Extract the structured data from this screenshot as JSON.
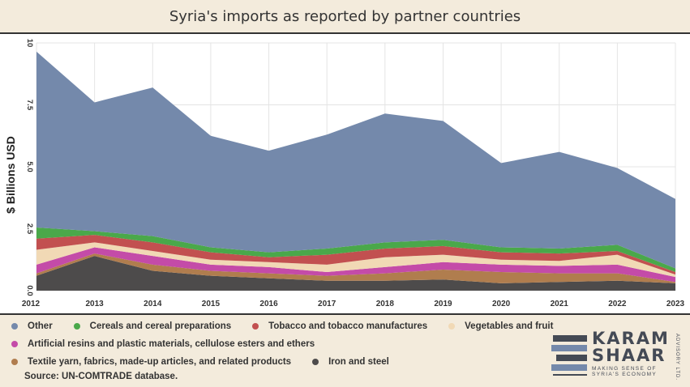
{
  "title": "Syria's imports as reported by partner countries",
  "source": "Source: UN-COMTRADE database.",
  "logo": {
    "line1": "KARAM",
    "line2": "SHAAR",
    "tagline1": "MAKING SENSE OF",
    "tagline2": "SYRIA'S ECONOMY",
    "side": "ADVISORY LTD."
  },
  "chart_data": {
    "type": "area",
    "stacked": true,
    "x": [
      "2012",
      "2013",
      "2014",
      "2015",
      "2016",
      "2017",
      "2018",
      "2019",
      "2020",
      "2021",
      "2022",
      "2023"
    ],
    "ylabel": "$ Billions USD",
    "ylim": [
      0,
      10
    ],
    "yticks": [
      "0.0",
      "2.5",
      "5.0",
      "7.5",
      "10"
    ],
    "grid": true,
    "legend_position": "bottom",
    "series": [
      {
        "name": "Iron and steel",
        "color": "#4d4b4b",
        "values": [
          0.6,
          1.4,
          0.8,
          0.6,
          0.5,
          0.4,
          0.4,
          0.45,
          0.3,
          0.35,
          0.4,
          0.3
        ]
      },
      {
        "name": "Textile yarn, fabrics, made-up articles, and related products",
        "color": "#b07d4e",
        "values": [
          0.1,
          0.1,
          0.25,
          0.2,
          0.2,
          0.2,
          0.3,
          0.4,
          0.45,
          0.35,
          0.3,
          0.05
        ]
      },
      {
        "name": "Artificial resins and plastic materials, cellulose esters and ethers",
        "color": "#c44ba8",
        "values": [
          0.35,
          0.25,
          0.35,
          0.25,
          0.25,
          0.15,
          0.25,
          0.3,
          0.3,
          0.3,
          0.35,
          0.2
        ]
      },
      {
        "name": "Vegetables and fruit",
        "color": "#f1d9b5",
        "values": [
          0.6,
          0.2,
          0.2,
          0.2,
          0.2,
          0.3,
          0.4,
          0.3,
          0.2,
          0.2,
          0.4,
          0.1
        ]
      },
      {
        "name": "Tobacco and tobacco manufactures",
        "color": "#c25050",
        "values": [
          0.45,
          0.3,
          0.35,
          0.3,
          0.2,
          0.4,
          0.35,
          0.35,
          0.3,
          0.3,
          0.15,
          0.1
        ]
      },
      {
        "name": "Cereals and cereal preparations",
        "color": "#4aa84a",
        "values": [
          0.45,
          0.15,
          0.25,
          0.2,
          0.2,
          0.25,
          0.25,
          0.25,
          0.2,
          0.2,
          0.25,
          0.15
        ]
      },
      {
        "name": "Other",
        "color": "#7489ab",
        "values": [
          7.1,
          5.2,
          6.0,
          4.5,
          4.1,
          4.6,
          5.2,
          4.8,
          3.4,
          3.9,
          3.1,
          2.8
        ]
      }
    ]
  },
  "legend_rows": [
    [
      {
        "label": "Other",
        "color": "#7489ab"
      },
      {
        "label": "Cereals and cereal preparations",
        "color": "#4aa84a"
      },
      {
        "label": "Tobacco and tobacco manufactures",
        "color": "#c25050"
      },
      {
        "label": "Vegetables and fruit",
        "color": "#f1d9b5"
      }
    ],
    [
      {
        "label": "Artificial resins and plastic materials, cellulose esters and ethers",
        "color": "#c44ba8"
      }
    ],
    [
      {
        "label": "Textile yarn, fabrics, made-up articles, and related products",
        "color": "#b07d4e"
      },
      {
        "label": "Iron and steel",
        "color": "#4d4b4b"
      }
    ]
  ]
}
